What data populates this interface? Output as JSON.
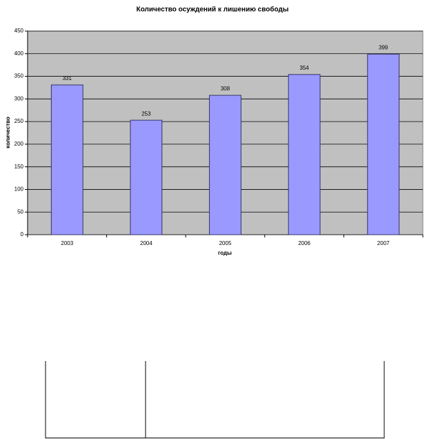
{
  "chart_data": {
    "type": "bar",
    "title": "Количество осуждений к лишению свободы",
    "x_label": "годы",
    "y_label": "количество",
    "categories": [
      "2003",
      "2004",
      "2005",
      "2006",
      "2007"
    ],
    "values": [
      331,
      253,
      308,
      354,
      399
    ],
    "color": "#9999ff",
    "ylim": [
      0,
      450
    ],
    "yticks": [
      0,
      50,
      100,
      150,
      200,
      250,
      300,
      350,
      400,
      450
    ],
    "grid": true
  }
}
